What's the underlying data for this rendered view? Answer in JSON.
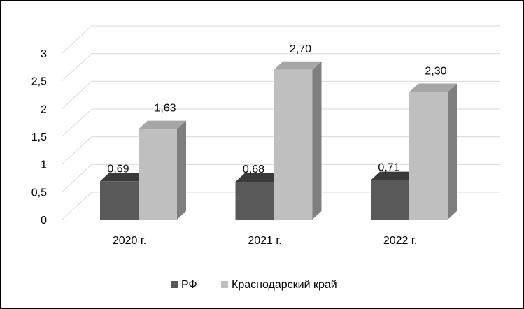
{
  "chart_data": {
    "type": "bar",
    "title": "",
    "xlabel": "",
    "ylabel": "",
    "categories": [
      "2020 г.",
      "2021 г.",
      "2022 г."
    ],
    "ylim": [
      0,
      3
    ],
    "yticks": [
      0,
      0.5,
      1,
      1.5,
      2,
      2.5,
      3
    ],
    "ytick_labels": [
      "0",
      "0,5",
      "1",
      "1,5",
      "2",
      "2,5",
      "3"
    ],
    "grid": true,
    "three_d": true,
    "legend_position": "bottom",
    "series": [
      {
        "name": "РФ",
        "values": [
          0.69,
          0.68,
          0.71
        ],
        "labels": [
          "0,69",
          "0,68",
          "0,71"
        ],
        "color": "#595959",
        "side_color": "#3f3f3f",
        "top_color": "#3a3a3a"
      },
      {
        "name": "Краснодарский край",
        "values": [
          1.63,
          2.7,
          2.3
        ],
        "labels": [
          "1,63",
          "2,70",
          "2,30"
        ],
        "color": "#bfbfbf",
        "side_color": "#7f7f7f",
        "top_color": "#a6a6a6"
      }
    ]
  }
}
